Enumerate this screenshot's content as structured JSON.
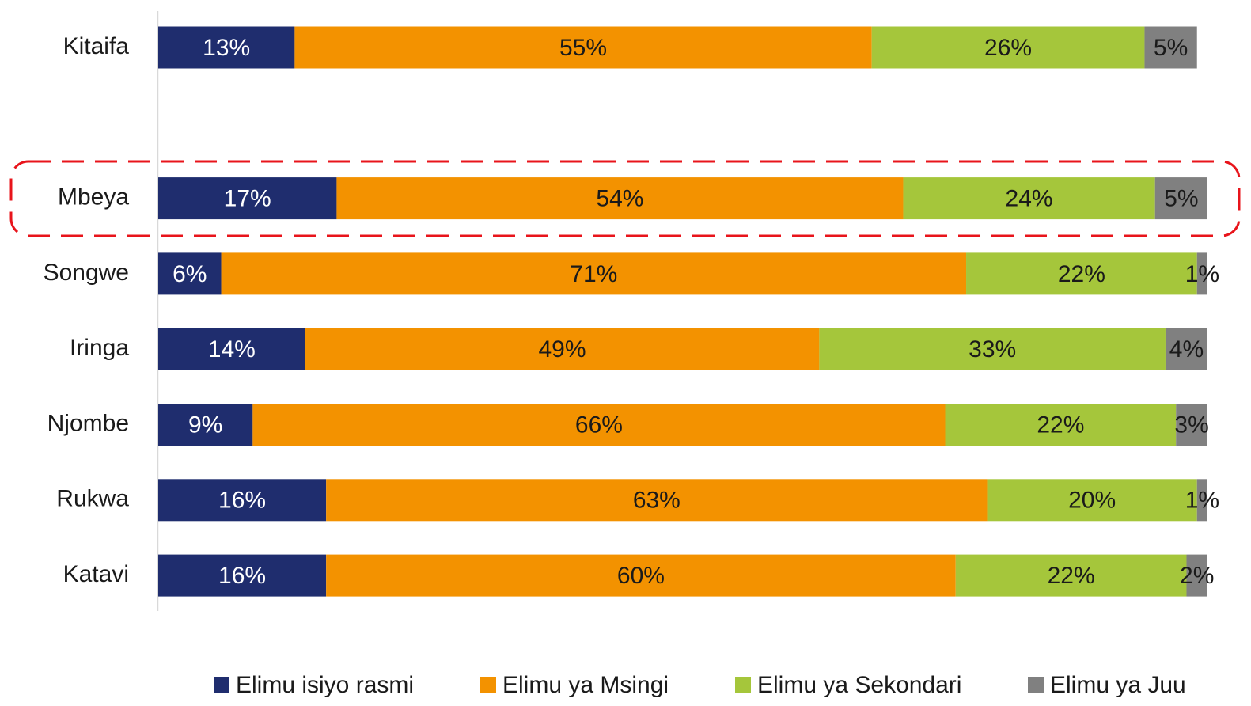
{
  "chart_data": {
    "type": "stacked-bar-horizontal",
    "categories": [
      "Kitaifa",
      null,
      "Mbeya",
      "Songwe",
      "Iringa",
      "Njombe",
      "Rukwa",
      "Katavi"
    ],
    "xlim": [
      0,
      100
    ],
    "series": [
      {
        "name": "Elimu isiyo rasmi",
        "color": "#1f2d6e",
        "values": [
          13,
          null,
          17,
          6,
          14,
          9,
          16,
          16
        ],
        "value_labels": [
          "13%",
          null,
          "17%",
          "6%",
          "14%",
          "9%",
          "16%",
          "16%"
        ]
      },
      {
        "name": "Elimu ya Msingi",
        "color": "#f39200",
        "values": [
          55,
          null,
          54,
          71,
          49,
          66,
          63,
          60
        ],
        "value_labels": [
          "55%",
          null,
          "54%",
          "71%",
          "49%",
          "66%",
          "63%",
          "60%"
        ]
      },
      {
        "name": "Elimu ya Sekondari",
        "color": "#a5c63b",
        "values": [
          26,
          null,
          24,
          22,
          33,
          22,
          20,
          22
        ],
        "value_labels": [
          "26%",
          null,
          "24%",
          "22%",
          "33%",
          "22%",
          "20%",
          "22%"
        ]
      },
      {
        "name": "Elimu ya Juu",
        "color": "#808080",
        "values": [
          5,
          null,
          5,
          1,
          4,
          3,
          1,
          2
        ],
        "value_labels": [
          "5%",
          null,
          "5%",
          "1%",
          "4%",
          "3%",
          "1%",
          "2%"
        ]
      }
    ],
    "legend": "bottom"
  }
}
